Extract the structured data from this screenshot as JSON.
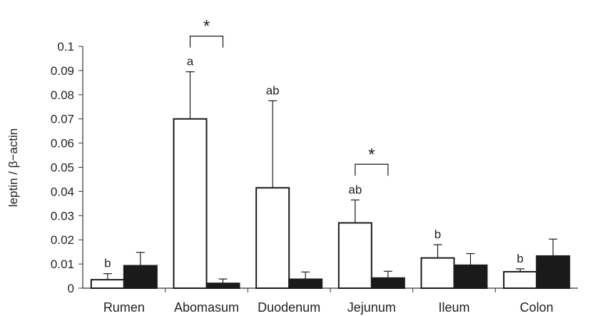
{
  "chart_data": {
    "type": "bar",
    "ylabel": "leptin / β−actin",
    "ylim": [
      0,
      0.1
    ],
    "yticks": [
      "0",
      "0.01",
      "0.02",
      "0.03",
      "0.04",
      "0.05",
      "0.06",
      "0.07",
      "0.08",
      "0.09",
      "0.1"
    ],
    "categories": [
      "Rumen",
      "Abomasum",
      "Duodenum",
      "Jejunum",
      "Ileum",
      "Colon"
    ],
    "series": [
      {
        "fill": "#ffffff",
        "values": [
          0.0035,
          0.07,
          0.0415,
          0.027,
          0.0125,
          0.0068
        ],
        "errors": [
          0.0025,
          0.0195,
          0.036,
          0.0095,
          0.0055,
          0.0012
        ]
      },
      {
        "fill": "#1a1a1a",
        "values": [
          0.0093,
          0.002,
          0.0037,
          0.0042,
          0.0095,
          0.0133
        ],
        "errors": [
          0.0055,
          0.0018,
          0.003,
          0.0028,
          0.0048,
          0.007
        ]
      }
    ],
    "letters": [
      "b",
      "a",
      "ab",
      "ab",
      "b",
      "b"
    ],
    "significance": [
      {
        "category_index": 1,
        "label": "*"
      },
      {
        "category_index": 3,
        "label": "*"
      }
    ],
    "grid": false,
    "legend": "none"
  }
}
